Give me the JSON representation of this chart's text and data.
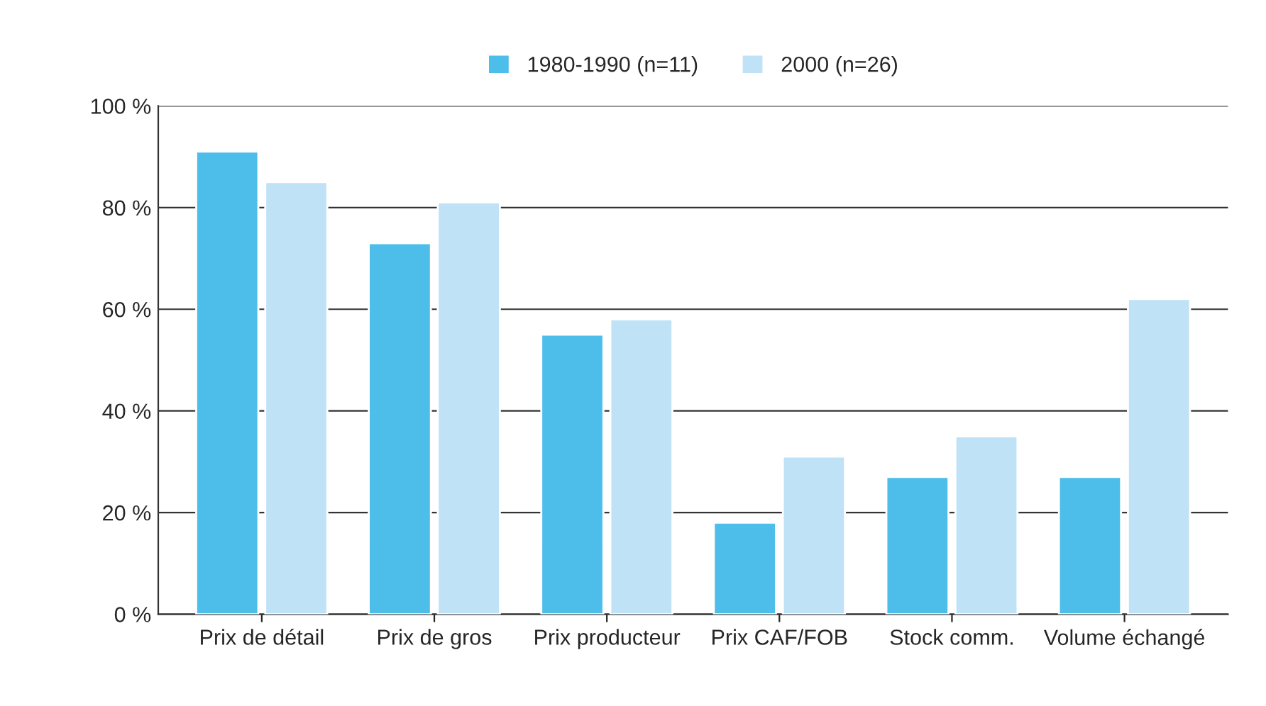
{
  "chart_data": {
    "type": "bar",
    "categories": [
      "Prix de détail",
      "Prix de gros",
      "Prix producteur",
      "Prix CAF/FOB",
      "Stock comm.",
      "Volume échangé"
    ],
    "series": [
      {
        "name": "1980-1990 (n=11)",
        "color": "#4dbde9",
        "values": [
          91,
          73,
          55,
          18,
          27,
          27
        ]
      },
      {
        "name": "2000 (n=26)",
        "color": "#bfe2f6",
        "values": [
          85,
          81,
          58,
          31,
          35,
          62
        ]
      }
    ],
    "ylim": [
      0,
      100
    ],
    "yticks": [
      {
        "value": 0,
        "label": "0 %"
      },
      {
        "value": 20,
        "label": "20 %"
      },
      {
        "value": 40,
        "label": "40 %"
      },
      {
        "value": 60,
        "label": "60 %"
      },
      {
        "value": 80,
        "label": "80 %"
      },
      {
        "value": 100,
        "label": "100 %"
      }
    ],
    "grid": "y",
    "legend": "top"
  }
}
